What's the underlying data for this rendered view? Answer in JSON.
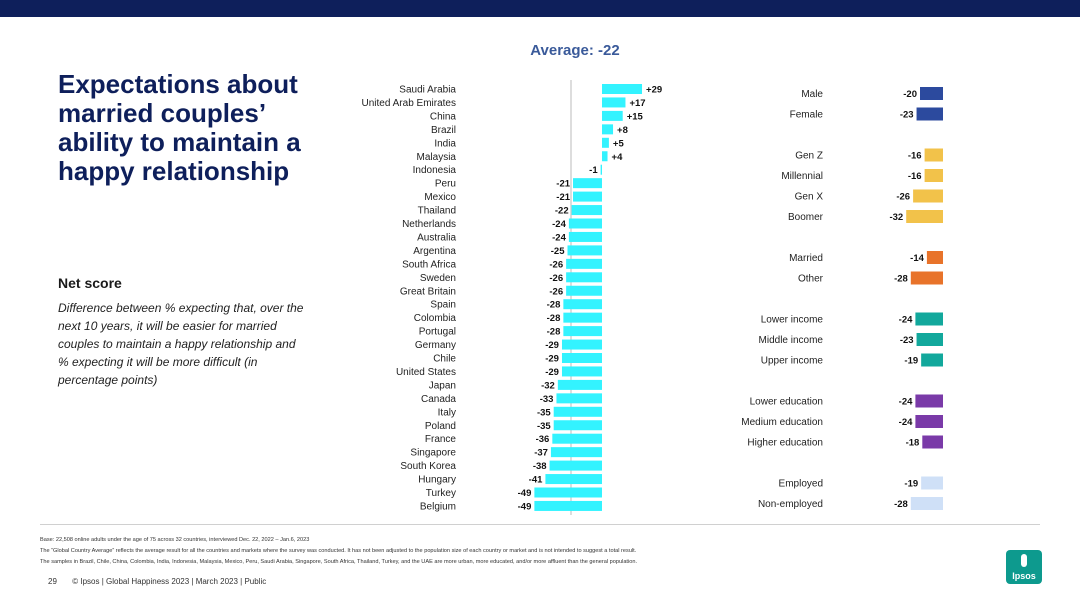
{
  "title": "Expectations about married couples’ ability to maintain a happy relationship",
  "net_score_heading": "Net score",
  "description": "Difference between % expecting that, over the next 10 years, it will be easier for married couples to maintain a happy relationship and % expecting it will be more difficult (in percentage points)",
  "chart_data": [
    {
      "type": "bar",
      "orientation": "horizontal",
      "title": "Average: -22",
      "categories": [
        "Saudi Arabia",
        "United Arab Emirates",
        "China",
        "Brazil",
        "India",
        "Malaysia",
        "Indonesia",
        "Peru",
        "Mexico",
        "Thailand",
        "Netherlands",
        "Australia",
        "Argentina",
        "South Africa",
        "Sweden",
        "Great Britain",
        "Spain",
        "Colombia",
        "Portugal",
        "Germany",
        "Chile",
        "United States",
        "Japan",
        "Canada",
        "Italy",
        "Poland",
        "France",
        "Singapore",
        "South Korea",
        "Hungary",
        "Turkey",
        "Belgium"
      ],
      "values": [
        29,
        17,
        15,
        8,
        5,
        4,
        -1,
        -21,
        -21,
        -22,
        -24,
        -24,
        -25,
        -26,
        -26,
        -26,
        -28,
        -28,
        -28,
        -29,
        -29,
        -29,
        -32,
        -33,
        -35,
        -35,
        -36,
        -37,
        -38,
        -41,
        -49,
        -49
      ],
      "labels": [
        "+29",
        "+17",
        "+15",
        "+8",
        "+5",
        "+4",
        "-1",
        "-21",
        "-21",
        "-22",
        "-24",
        "-24",
        "-25",
        "-26",
        "-26",
        "-26",
        "-28",
        "-28",
        "-28",
        "-29",
        "-29",
        "-29",
        "-32",
        "-33",
        "-35",
        "-35",
        "-36",
        "-37",
        "-38",
        "-41",
        "-49",
        "-49"
      ],
      "color": "#33f3ff",
      "xlim": [
        -50,
        30
      ]
    },
    {
      "type": "bar",
      "orientation": "horizontal",
      "title": "",
      "groups": [
        {
          "name": "gender",
          "color": "#2c4a9e",
          "categories": [
            "Male",
            "Female"
          ],
          "values": [
            -20,
            -23
          ],
          "labels": [
            "-20",
            "-23"
          ]
        },
        {
          "name": "generation",
          "color": "#f2c24a",
          "categories": [
            "Gen Z",
            "Millennial",
            "Gen X",
            "Boomer"
          ],
          "values": [
            -16,
            -16,
            -26,
            -32
          ],
          "labels": [
            "-16",
            "-16",
            "-26",
            "-32"
          ]
        },
        {
          "name": "marital",
          "color": "#e8732a",
          "categories": [
            "Married",
            "Other"
          ],
          "values": [
            -14,
            -28
          ],
          "labels": [
            "-14",
            "-28"
          ]
        },
        {
          "name": "income",
          "color": "#12a89c",
          "categories": [
            "Lower income",
            "Middle income",
            "Upper income"
          ],
          "values": [
            -24,
            -23,
            -19
          ],
          "labels": [
            "-24",
            "-23",
            "-19"
          ]
        },
        {
          "name": "education",
          "color": "#7a3aa8",
          "categories": [
            "Lower education",
            "Medium education",
            "Higher education"
          ],
          "values": [
            -24,
            -24,
            -18
          ],
          "labels": [
            "-24",
            "-24",
            "-18"
          ]
        },
        {
          "name": "employment",
          "color": "#cfe0f7",
          "categories": [
            "Employed",
            "Non-employed"
          ],
          "values": [
            -19,
            -28
          ],
          "labels": [
            "-19",
            "-28"
          ]
        }
      ],
      "xlim": [
        -35,
        0
      ]
    }
  ],
  "footnotes": [
    "Base: 22,508 online adults under the age of 75 across 32 countries, interviewed Dec. 22, 2022 – Jan.6, 2023",
    "The “Global Country Average” reflects the average result for all the countries and markets where the survey was conducted. It has not been adjusted to the population size of each country or market and is not intended to suggest a total result.",
    "The samples in Brazil, Chile, China, Colombia, India, Indonesia, Malaysia, Mexico, Peru, Saudi Arabia, Singapore, South Africa, Thailand, Turkey, and the UAE are more urban, more educated, and/or more affluent than the general population."
  ],
  "footer": {
    "page_number": "29",
    "text": "© Ipsos | Global Happiness 2023 | March 2023 | Public"
  },
  "logo_text": "Ipsos"
}
